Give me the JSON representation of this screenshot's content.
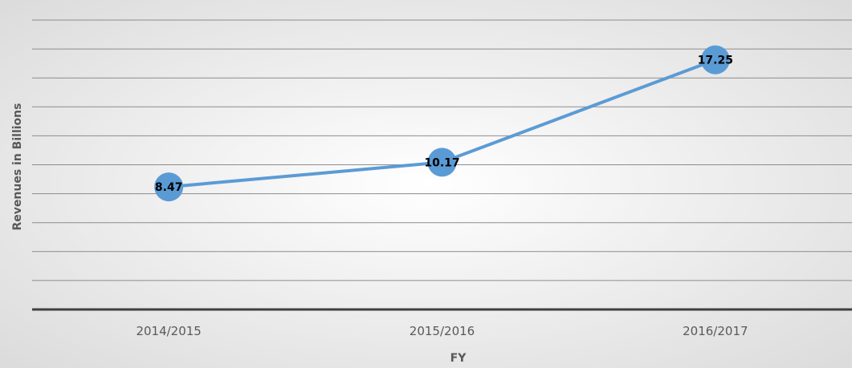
{
  "chart_data": {
    "type": "line",
    "categories": [
      "2014/2015",
      "2015/2016",
      "2016/2017"
    ],
    "series": [
      {
        "values": [
          8.47,
          10.17,
          17.25
        ]
      }
    ],
    "data_labels": [
      "8.47",
      "10.17",
      "17.25"
    ],
    "xlabel": "FY",
    "ylabel": "Revenues in Billions",
    "ylim": [
      0,
      20
    ],
    "y_tick_labels_visible": false,
    "grid": true,
    "legend": "none",
    "colors": {
      "line": "#5b9bd5",
      "marker": "#5b9bd5",
      "gridline": "#8c8c8c",
      "axis": "#404040",
      "background_center": "#ffffff",
      "background_edge": "#d9d9d9"
    }
  }
}
